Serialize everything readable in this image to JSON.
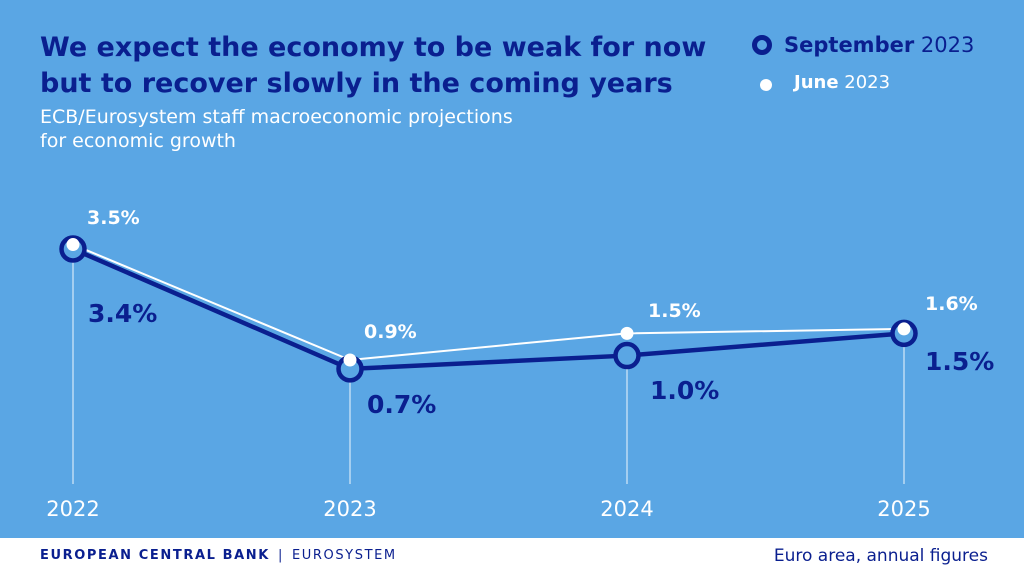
{
  "header": {
    "title": "We expect the economy to be weak for now\nbut to recover slowly in the coming years",
    "subtitle": "ECB/Eurosystem staff macroeconomic projections\nfor economic growth"
  },
  "legend": {
    "september_month": "September",
    "september_year": "2023",
    "june_month": "June",
    "june_year": "2023"
  },
  "footer": {
    "brand_main": "EUROPEAN CENTRAL BANK",
    "brand_separator": "|",
    "brand_sub": "EUROSYSTEM",
    "note": "Euro area, annual figures"
  },
  "colors": {
    "background": "#5aa6e4",
    "september": "#0a1f8f",
    "june": "#ffffff",
    "guide": "#d6e8f7"
  },
  "chart_data": {
    "type": "line",
    "categories": [
      "2022",
      "2023",
      "2024",
      "2025"
    ],
    "unit": "%",
    "series": [
      {
        "name": "September 2023",
        "values": [
          3.4,
          0.7,
          1.0,
          1.5
        ],
        "labels": [
          "3.4%",
          "0.7%",
          "1.0%",
          "1.5%"
        ]
      },
      {
        "name": "June 2023",
        "values": [
          3.5,
          0.9,
          1.5,
          1.6
        ],
        "labels": [
          "3.5%",
          "0.9%",
          "1.5%",
          "1.6%"
        ]
      }
    ],
    "legend_position": "top-right",
    "grid": false
  }
}
